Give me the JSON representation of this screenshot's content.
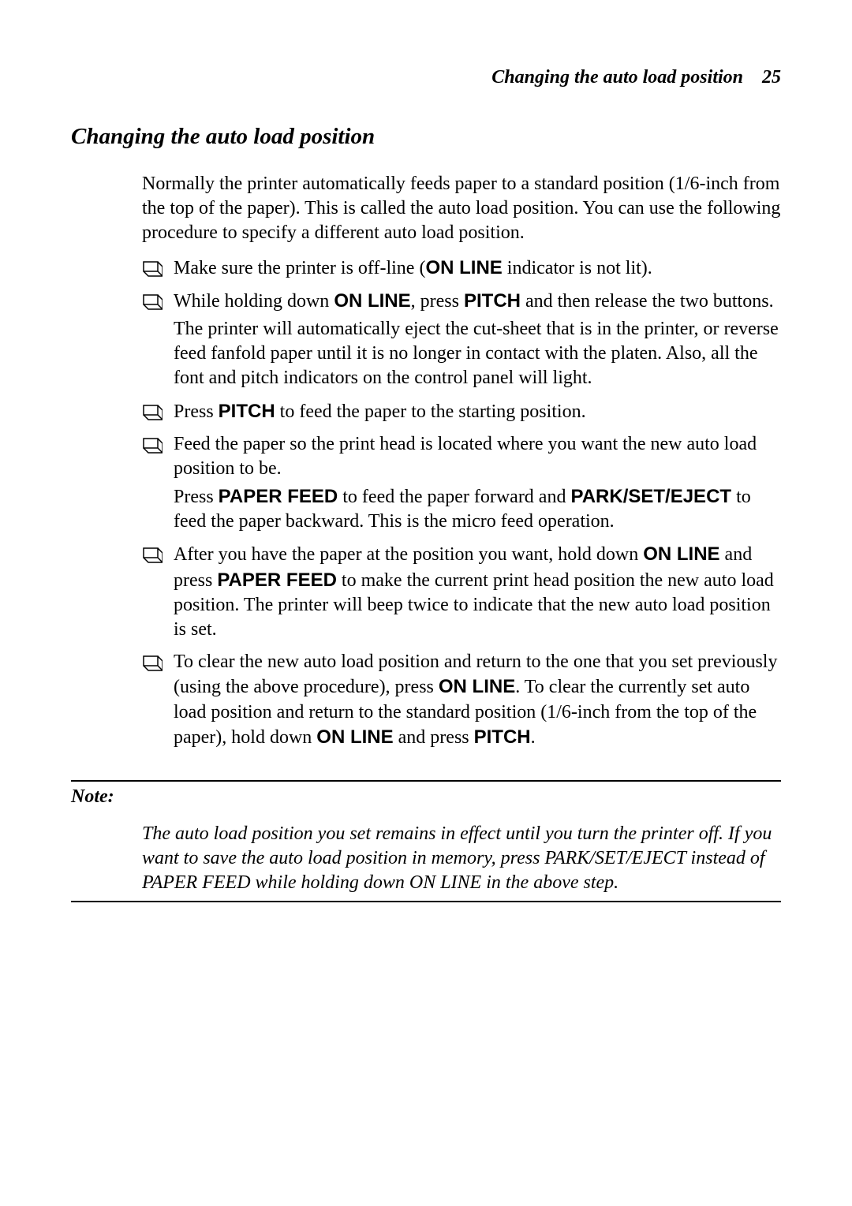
{
  "header": {
    "title": "Changing the auto load position",
    "page_number": "25"
  },
  "section": {
    "title": "Changing the auto load position",
    "intro": "Normally the printer automatically feeds paper to a standard position (1/6-inch from the top of the paper). This is called the auto load position. You can use the following procedure to specify a different auto load position."
  },
  "bullets": [
    {
      "parts": [
        {
          "text": "Make sure the printer is off-line (",
          "bold": false
        },
        {
          "text": "ON LINE",
          "bold": true
        },
        {
          "text": " indicator is not lit).",
          "bold": false
        }
      ]
    },
    {
      "parts": [
        {
          "text": "While holding down ",
          "bold": false
        },
        {
          "text": "ON LINE",
          "bold": true
        },
        {
          "text": ", press ",
          "bold": false
        },
        {
          "text": "PITCH",
          "bold": true
        },
        {
          "text": " and then release the two buttons.",
          "bold": false
        }
      ],
      "sub": "The printer will automatically eject the cut-sheet that is in the printer, or reverse feed fanfold paper until it is no longer in contact with the platen. Also, all the font and pitch indicators on the control panel will light."
    },
    {
      "parts": [
        {
          "text": "Press ",
          "bold": false
        },
        {
          "text": "PITCH",
          "bold": true
        },
        {
          "text": " to feed the paper to the starting position.",
          "bold": false
        }
      ]
    },
    {
      "parts": [
        {
          "text": "Feed the paper so the print head is located where you want the new auto load position to be.",
          "bold": false
        }
      ],
      "sub_parts": [
        {
          "text": "Press ",
          "bold": false
        },
        {
          "text": "PAPER FEED",
          "bold": true
        },
        {
          "text": " to feed the paper forward and ",
          "bold": false
        },
        {
          "text": "PARK/SET/EJECT",
          "bold": true
        },
        {
          "text": " to feed the paper backward. This is the micro feed operation.",
          "bold": false
        }
      ]
    },
    {
      "parts": [
        {
          "text": "After you have the paper at the position you want, hold down ",
          "bold": false
        },
        {
          "text": "ON LINE",
          "bold": true
        },
        {
          "text": " and press ",
          "bold": false
        },
        {
          "text": "PAPER FEED",
          "bold": true
        },
        {
          "text": " to make the current print head position the new auto load position. The printer will beep twice to indicate that the new auto load position is set.",
          "bold": false
        }
      ]
    },
    {
      "parts": [
        {
          "text": "To clear the new auto load position and return to the one that you set previously (using the above procedure), press ",
          "bold": false
        },
        {
          "text": "ON LINE",
          "bold": true
        },
        {
          "text": ". To clear the currently set auto load position and return to the standard position (1/6-inch from the top of the paper), hold down ",
          "bold": false
        },
        {
          "text": "ON LINE",
          "bold": true
        },
        {
          "text": " and press ",
          "bold": false
        },
        {
          "text": "PITCH",
          "bold": true
        },
        {
          "text": ".",
          "bold": false
        }
      ]
    }
  ],
  "note": {
    "label": "Note:",
    "text": "The auto load position you set remains in effect until you turn the printer off. If you want to save the auto load position in memory, press PARK/SET/EJECT instead of PAPER FEED while holding down ON LINE in the above step."
  },
  "bullet_svg": {
    "fill": "#000000"
  }
}
